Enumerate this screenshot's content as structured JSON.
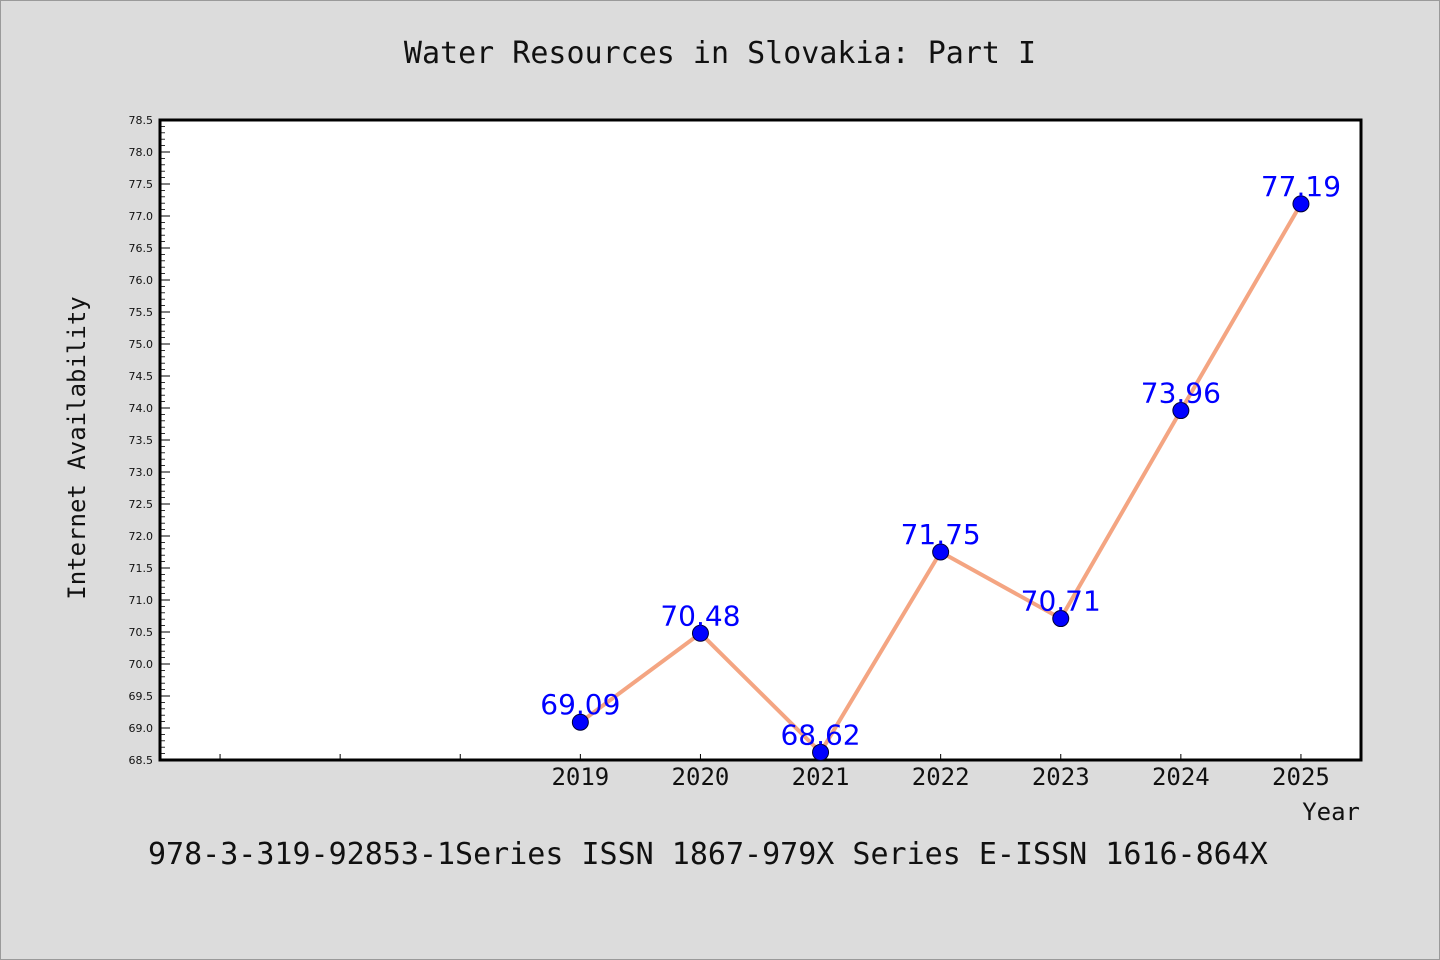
{
  "chart_data": {
    "type": "line",
    "title": "Water Resources in Slovakia: Part I",
    "xlabel": "Year",
    "ylabel": "Internet Availability",
    "footer": "978-3-319-92853-1Series ISSN 1867-979X Series E-ISSN 1616-864X",
    "x": [
      2019,
      2020,
      2021,
      2022,
      2023,
      2024,
      2025
    ],
    "x_tick_labels": [
      "2019",
      "2020",
      "2021",
      "2022",
      "2023",
      "2024",
      "2025"
    ],
    "xlim": [
      2015.5,
      2025.5
    ],
    "ylim": [
      68.5,
      78.5
    ],
    "y_tick_labels": [
      "68.5",
      "69.0",
      "69.5",
      "70.0",
      "70.5",
      "71.0",
      "71.5",
      "72.0",
      "72.5",
      "73.0",
      "73.5",
      "74.0",
      "74.5",
      "75.0",
      "75.5",
      "76.0",
      "76.5",
      "77.0",
      "77.5",
      "78.0",
      "78.5"
    ],
    "series": [
      {
        "values": [
          69.09,
          70.48,
          68.62,
          71.75,
          70.71,
          73.96,
          77.19
        ],
        "labels": [
          "69.09",
          "70.48",
          "68.62",
          "71.75",
          "70.71",
          "73.96",
          "77.19"
        ]
      }
    ],
    "grid": false,
    "colors": {
      "line": "#f4a582",
      "marker": "#0000ff",
      "label": "#0000ff",
      "background": "#dcdcdc",
      "plot_background": "#ffffff"
    }
  }
}
